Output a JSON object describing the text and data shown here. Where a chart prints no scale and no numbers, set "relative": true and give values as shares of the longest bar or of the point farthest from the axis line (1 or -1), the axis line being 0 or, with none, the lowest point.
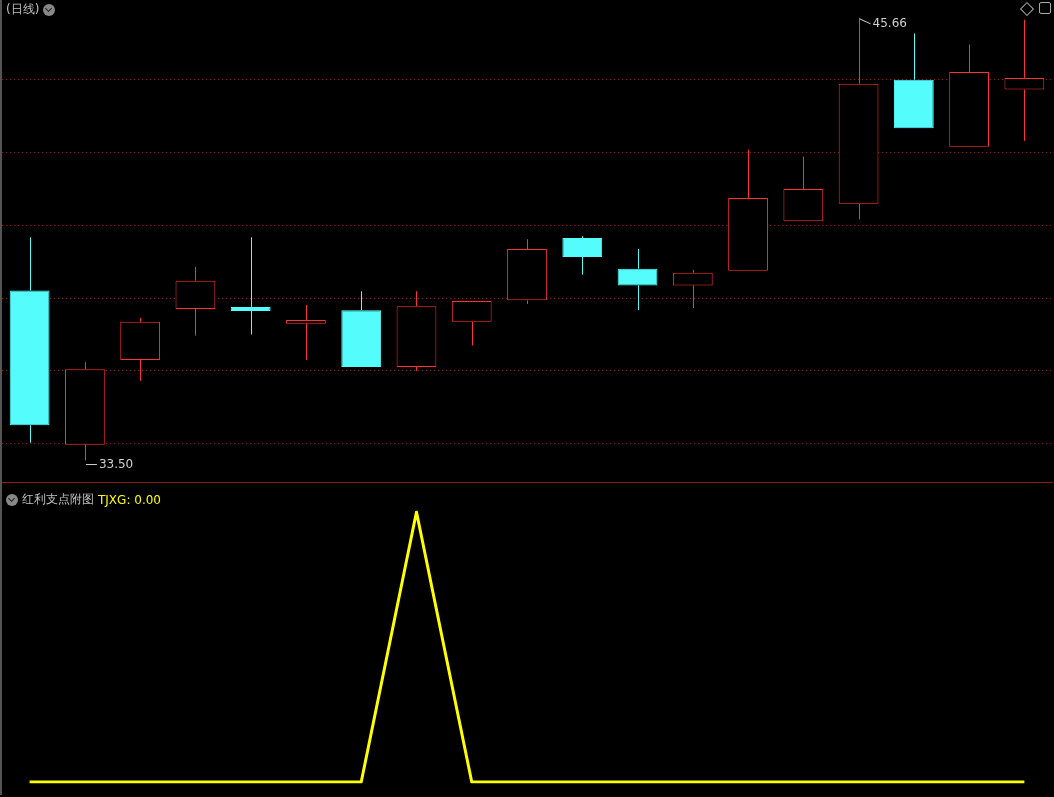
{
  "chart_data": [
    {
      "type": "candlestick",
      "title": "(日线)",
      "categories": [
        null,
        null,
        null,
        null,
        null,
        null,
        null,
        null,
        null,
        null,
        null,
        null,
        null,
        null,
        null,
        null,
        null,
        null,
        null
      ],
      "ohlc": [
        [
          38.17,
          39.63,
          33.99,
          34.47
        ],
        [
          33.93,
          36.2,
          33.5,
          36.01
        ],
        [
          36.26,
          37.42,
          35.69,
          37.31
        ],
        [
          37.66,
          38.82,
          36.93,
          38.44
        ],
        [
          37.72,
          39.63,
          36.96,
          37.61
        ],
        [
          37.26,
          37.77,
          36.26,
          37.36
        ],
        [
          37.63,
          38.15,
          36.07,
          36.07
        ],
        [
          36.07,
          38.15,
          35.96,
          37.74
        ],
        [
          37.31,
          37.88,
          36.66,
          37.88
        ],
        [
          37.9,
          39.58,
          37.8,
          39.31
        ],
        [
          39.61,
          39.66,
          38.61,
          39.09
        ],
        [
          38.77,
          39.31,
          37.63,
          38.31
        ],
        [
          38.31,
          38.74,
          37.69,
          38.66
        ],
        [
          38.71,
          42.04,
          38.71,
          40.71
        ],
        [
          40.07,
          41.85,
          40.07,
          40.96
        ],
        [
          40.55,
          45.66,
          40.12,
          43.85
        ],
        [
          43.96,
          45.23,
          42.63,
          42.63
        ],
        [
          42.12,
          44.93,
          42.12,
          44.17
        ],
        [
          43.69,
          45.61,
          42.28,
          44.01
        ]
      ],
      "colors": [
        "#54fcfc",
        "#ff3232",
        "#ff3232",
        "#ff3232",
        "#54fcfc",
        "#ff3232",
        "#54fcfc",
        "#ff3232",
        "#ff3232",
        "#ff3232",
        "#54fcfc",
        "#54fcfc",
        "#ff3232",
        "#ff3232",
        "#ff3232",
        "#ff3232",
        "#54fcfc",
        "#ff3232",
        "#ff3232"
      ],
      "annotations": [
        "45.66",
        "33.50"
      ],
      "ylim": [
        32.91,
        46.15
      ],
      "yticks": [
        {
          "value": 33.96,
          "label": null
        },
        {
          "value": 35.96,
          "label": null
        },
        {
          "value": 37.96,
          "label": null
        },
        {
          "value": 39.96,
          "label": null
        },
        {
          "value": 41.96,
          "label": null
        },
        {
          "value": 43.96,
          "label": null
        }
      ],
      "tick_labels": false,
      "grid": true
    },
    {
      "type": "line",
      "title": "红利支点附图",
      "categories": [
        null,
        null,
        null,
        null,
        null,
        null,
        null,
        null,
        null,
        null,
        null,
        null,
        null,
        null,
        null,
        null,
        null,
        null,
        null
      ],
      "relative": true,
      "series": [
        {
          "color": "#ffff00",
          "values": [
            0,
            0,
            0,
            0,
            0,
            0,
            0,
            1,
            0,
            0,
            0,
            0,
            0,
            0,
            0,
            0,
            0,
            0,
            0
          ]
        }
      ],
      "annotations": [
        "TJXG: 0.00"
      ],
      "marker": "none"
    }
  ]
}
